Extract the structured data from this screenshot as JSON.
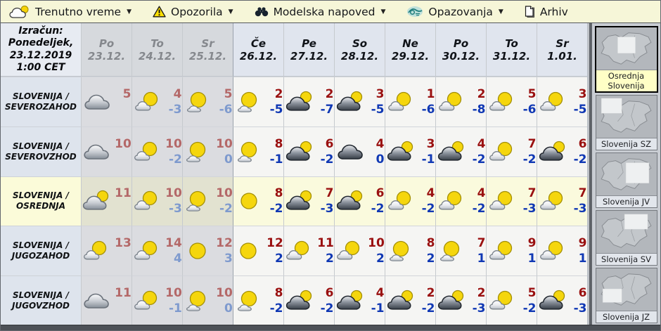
{
  "menubar": {
    "items": [
      {
        "label": "Trenutno vreme",
        "icon": "sun-cloud-icon",
        "has_dropdown": true
      },
      {
        "label": "Opozorila",
        "icon": "warning-icon",
        "has_dropdown": true
      },
      {
        "label": "Modelska napoved",
        "icon": "binoculars-icon",
        "has_dropdown": true
      },
      {
        "label": "Opazovanja",
        "icon": "observations-icon",
        "has_dropdown": true
      },
      {
        "label": "Arhiv",
        "icon": "document-icon",
        "has_dropdown": false
      }
    ]
  },
  "table": {
    "corner": [
      "Izračun:",
      "Ponedeljek,",
      "23.12.2019",
      "1:00 CET"
    ],
    "columns": [
      {
        "day": "Po",
        "date": "23.12.",
        "past": true
      },
      {
        "day": "To",
        "date": "24.12.",
        "past": true
      },
      {
        "day": "Sr",
        "date": "25.12.",
        "past": true
      },
      {
        "day": "Če",
        "date": "26.12.",
        "past": false
      },
      {
        "day": "Pe",
        "date": "27.12.",
        "past": false
      },
      {
        "day": "So",
        "date": "28.12.",
        "past": false
      },
      {
        "day": "Ne",
        "date": "29.12.",
        "past": false
      },
      {
        "day": "Po",
        "date": "30.12.",
        "past": false
      },
      {
        "day": "To",
        "date": "31.12.",
        "past": false
      },
      {
        "day": "Sr",
        "date": "1.01.",
        "past": false
      }
    ],
    "rows": [
      {
        "label_lines": [
          "SLOVENIJA /",
          "SEVEROZAHOD"
        ],
        "highlighted": false,
        "cells": [
          {
            "icon": "cloud",
            "max": "5",
            "min": ""
          },
          {
            "icon": "sun-cloud",
            "max": "4",
            "min": "-3"
          },
          {
            "icon": "sun-small-cloud",
            "max": "5",
            "min": "-6"
          },
          {
            "icon": "sun-small-cloud",
            "max": "2",
            "min": "-5"
          },
          {
            "icon": "dark-cloud-sun",
            "max": "2",
            "min": "-7"
          },
          {
            "icon": "dark-cloud-sun",
            "max": "3",
            "min": "-5"
          },
          {
            "icon": "sun-cloud",
            "max": "1",
            "min": "-6"
          },
          {
            "icon": "sun-cloud",
            "max": "2",
            "min": "-8"
          },
          {
            "icon": "sun-cloud",
            "max": "5",
            "min": "-6"
          },
          {
            "icon": "sun-cloud",
            "max": "3",
            "min": "-5"
          }
        ]
      },
      {
        "label_lines": [
          "SLOVENIJA /",
          "SEVEROVZHOD"
        ],
        "highlighted": false,
        "cells": [
          {
            "icon": "cloud",
            "max": "10",
            "min": ""
          },
          {
            "icon": "sun-cloud",
            "max": "10",
            "min": "-2"
          },
          {
            "icon": "sun-small-cloud",
            "max": "10",
            "min": "0"
          },
          {
            "icon": "sun-small-cloud",
            "max": "8",
            "min": "-1"
          },
          {
            "icon": "dark-cloud-sun",
            "max": "6",
            "min": "-2"
          },
          {
            "icon": "dark-cloud",
            "max": "4",
            "min": "0"
          },
          {
            "icon": "dark-cloud-sun",
            "max": "3",
            "min": "-1"
          },
          {
            "icon": "dark-cloud-sun",
            "max": "4",
            "min": "-2"
          },
          {
            "icon": "sun-cloud",
            "max": "7",
            "min": "-2"
          },
          {
            "icon": "dark-cloud-sun",
            "max": "6",
            "min": "-2"
          }
        ]
      },
      {
        "label_lines": [
          "SLOVENIJA /",
          "OSREDNJA"
        ],
        "highlighted": true,
        "cells": [
          {
            "icon": "gray-cloud-sun",
            "max": "11",
            "min": ""
          },
          {
            "icon": "sun-cloud",
            "max": "10",
            "min": "-3"
          },
          {
            "icon": "sun-small-cloud",
            "max": "10",
            "min": "-2"
          },
          {
            "icon": "sun",
            "max": "8",
            "min": "-2"
          },
          {
            "icon": "dark-cloud-sun",
            "max": "7",
            "min": "-3"
          },
          {
            "icon": "dark-cloud-sun",
            "max": "6",
            "min": "-2"
          },
          {
            "icon": "sun-cloud",
            "max": "4",
            "min": "-2"
          },
          {
            "icon": "sun-cloud",
            "max": "4",
            "min": "-2"
          },
          {
            "icon": "sun-cloud",
            "max": "7",
            "min": "-3"
          },
          {
            "icon": "sun-cloud",
            "max": "7",
            "min": "-3"
          }
        ]
      },
      {
        "label_lines": [
          "SLOVENIJA /",
          "JUGOZAHOD"
        ],
        "highlighted": false,
        "cells": [
          {
            "icon": "sun-cloud",
            "max": "13",
            "min": ""
          },
          {
            "icon": "sun-cloud",
            "max": "14",
            "min": "4"
          },
          {
            "icon": "sun",
            "max": "12",
            "min": "3"
          },
          {
            "icon": "sun",
            "max": "12",
            "min": "2"
          },
          {
            "icon": "sun-cloud",
            "max": "11",
            "min": "2"
          },
          {
            "icon": "sun-cloud",
            "max": "10",
            "min": "2"
          },
          {
            "icon": "sun-small-cloud",
            "max": "8",
            "min": "2"
          },
          {
            "icon": "sun-small-cloud",
            "max": "7",
            "min": "1"
          },
          {
            "icon": "sun-cloud",
            "max": "9",
            "min": "1"
          },
          {
            "icon": "sun-cloud",
            "max": "9",
            "min": "1"
          }
        ]
      },
      {
        "label_lines": [
          "SLOVENIJA /",
          "JUGOVZHOD"
        ],
        "highlighted": false,
        "cells": [
          {
            "icon": "cloud",
            "max": "11",
            "min": ""
          },
          {
            "icon": "sun-cloud",
            "max": "10",
            "min": "-1"
          },
          {
            "icon": "sun-small-cloud",
            "max": "10",
            "min": "0"
          },
          {
            "icon": "sun-small-cloud",
            "max": "8",
            "min": "-2"
          },
          {
            "icon": "dark-cloud-sun",
            "max": "6",
            "min": "-2"
          },
          {
            "icon": "dark-cloud-sun",
            "max": "4",
            "min": "-1"
          },
          {
            "icon": "dark-cloud-sun",
            "max": "2",
            "min": "-2"
          },
          {
            "icon": "dark-cloud-sun",
            "max": "2",
            "min": "-3"
          },
          {
            "icon": "sun-cloud",
            "max": "5",
            "min": "-2"
          },
          {
            "icon": "dark-cloud-sun",
            "max": "6",
            "min": "-3"
          }
        ]
      }
    ]
  },
  "sidebar": {
    "maps": [
      {
        "label": "Osrednja Slovenija",
        "region": "center",
        "selected": true
      },
      {
        "label": "Slovenija SZ",
        "region": "nw",
        "selected": false
      },
      {
        "label": "Slovenija JV",
        "region": "e",
        "selected": false
      },
      {
        "label": "Slovenija SV",
        "region": "ne",
        "selected": false
      },
      {
        "label": "Slovenija JZ",
        "region": "sw",
        "selected": false
      }
    ]
  },
  "colors": {
    "max_temp": "#9a1010",
    "min_temp": "#1038b4",
    "max_temp_past": "#b46868",
    "min_temp_past": "#7e9ace",
    "menubar_bg": "#f6f6d8",
    "highlight_row_bg": "#fafadd",
    "selected_map_label_bg": "#ffffc6"
  }
}
